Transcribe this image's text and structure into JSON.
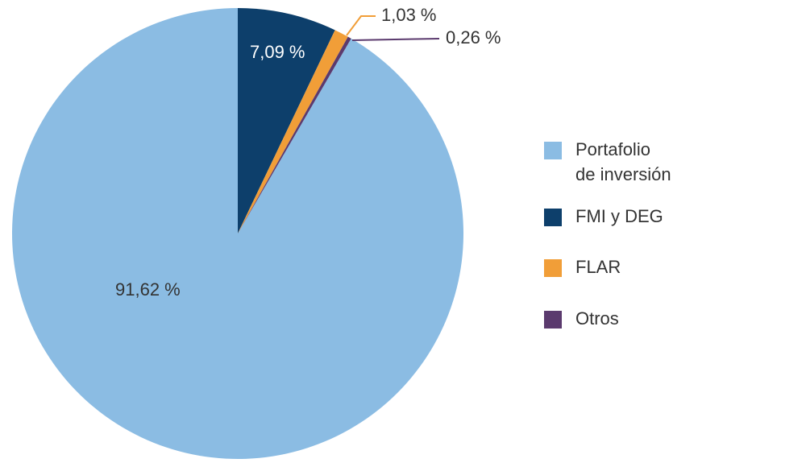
{
  "chart_data": {
    "type": "pie",
    "categories": [
      "Portafolio de inversión",
      "FMI y DEG",
      "FLAR",
      "Otros"
    ],
    "values": [
      91.62,
      7.09,
      1.03,
      0.26
    ],
    "value_labels": [
      "91,62 %",
      "7,09 %",
      "1,03 %",
      "0,26 %"
    ],
    "colors": [
      "#8bbce3",
      "#0d3f6b",
      "#f19e38",
      "#5b3a6e"
    ]
  }
}
